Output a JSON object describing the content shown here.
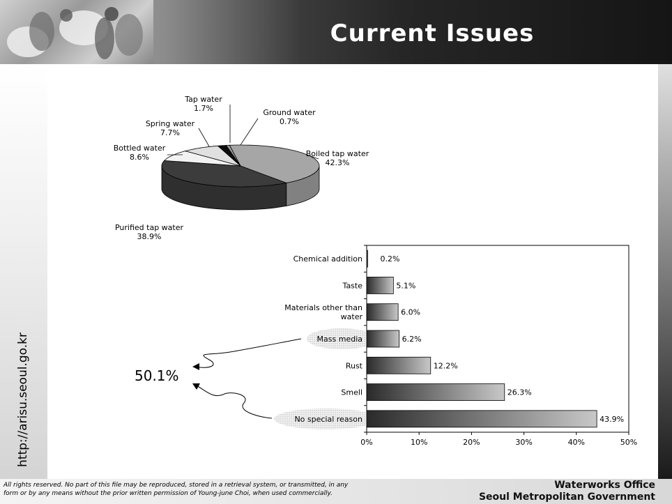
{
  "slide": {
    "title": "Current Issues",
    "side_url": "http://arisu.seoul.go.kr",
    "footer_legal_line1": "All rights reserved. No part of this file may be reproduced, stored in a retrieval system, or transmitted, in any",
    "footer_legal_line2": "form or by any means without the prior written permission of Young-june Choi, when used commercially.",
    "footer_org_line1": "Waterworks Office",
    "footer_org_line2": "Seoul Metropolitan Government",
    "callout_value": "50.1%"
  },
  "chart_data": [
    {
      "type": "pie",
      "categories": [
        "Boiled tap water",
        "Purified tap water",
        "Bottled water",
        "Spring water",
        "Tap water",
        "Ground water"
      ],
      "values": [
        42.3,
        38.9,
        8.6,
        7.7,
        1.7,
        0.7
      ],
      "value_labels": [
        "42.3%",
        "38.9%",
        "8.6%",
        "7.7%",
        "1.7%",
        "0.7%"
      ],
      "colors": [
        "#a6a6a6",
        "#3c3c3c",
        "#f2f2f2",
        "#e0e0e0",
        "#0d0d0d",
        "#9a9a9a"
      ],
      "style": "3d"
    },
    {
      "type": "bar",
      "orientation": "horizontal",
      "categories": [
        "Chemical addition",
        "Taste",
        "Materials other than water",
        "Mass media",
        "Rust",
        "Smell",
        "No special reason"
      ],
      "category_lines": [
        [
          "Chemical addition"
        ],
        [
          "Taste"
        ],
        [
          "Materials other than",
          "water"
        ],
        [
          "Mass media"
        ],
        [
          "Rust"
        ],
        [
          "Smell"
        ],
        [
          "No special reason"
        ]
      ],
      "values": [
        0.2,
        5.1,
        6.0,
        6.2,
        12.2,
        26.3,
        43.9
      ],
      "value_labels": [
        "0.2%",
        "5.1%",
        "6.0%",
        "6.2%",
        "12.2%",
        "26.3%",
        "43.9%"
      ],
      "xlim": [
        0,
        50
      ],
      "ticks": [
        "0%",
        "10%",
        "20%",
        "30%",
        "40%",
        "50%"
      ],
      "highlighted": [
        "Mass media",
        "No special reason"
      ]
    }
  ]
}
